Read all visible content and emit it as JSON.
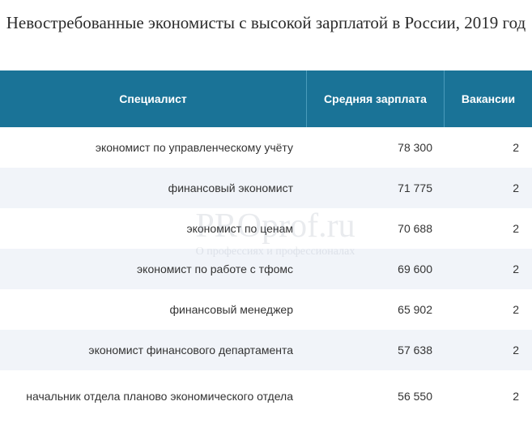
{
  "title": "Невостребованные экономисты с высокой зарплатой в России, 2019 год",
  "table": {
    "headers": {
      "specialist": "Специалист",
      "salary": "Средняя зарплата",
      "vacancies": "Вакансии"
    },
    "rows": [
      {
        "specialist": "экономист по управленческому учёту",
        "salary": "78 300",
        "vacancies": "2"
      },
      {
        "specialist": "финансовый экономист",
        "salary": "71 775",
        "vacancies": "2"
      },
      {
        "specialist": "экономист по ценам",
        "salary": "70 688",
        "vacancies": "2"
      },
      {
        "specialist": "экономист по работе с тфомс",
        "salary": "69 600",
        "vacancies": "2"
      },
      {
        "specialist": "финансовый менеджер",
        "salary": "65 902",
        "vacancies": "2"
      },
      {
        "specialist": "экономист финансового департамента",
        "salary": "57 638",
        "vacancies": "2"
      },
      {
        "specialist": "начальник отдела планово экономического отдела",
        "salary": "56 550",
        "vacancies": "2"
      }
    ]
  },
  "watermark": {
    "main": "PROprof.ru",
    "sub": "О профессиях и профессионалах"
  }
}
